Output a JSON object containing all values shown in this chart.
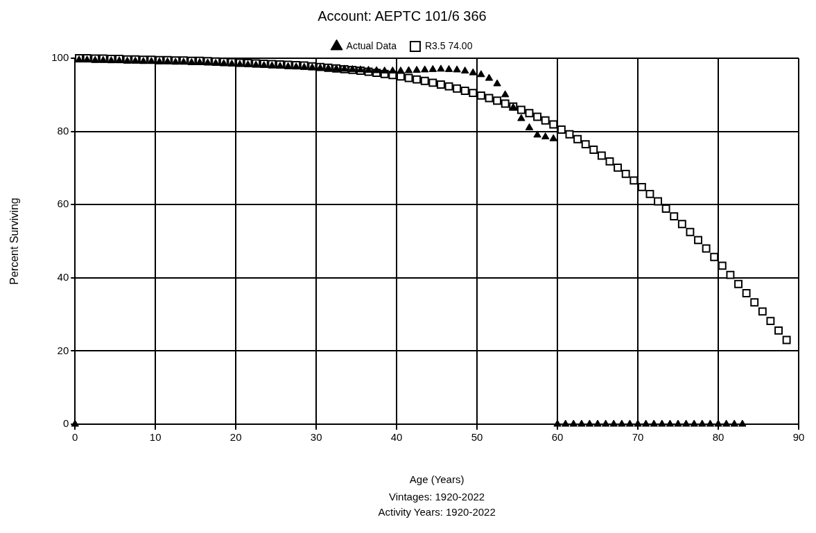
{
  "chart_data": {
    "type": "scatter",
    "title": "Account: AEPTC 101/6 366",
    "xlabel": "Age (Years)",
    "ylabel": "Percent Surviving",
    "annotations": [
      "Vintages: 1920-2022",
      "Activity Years: 1920-2022"
    ],
    "xlim": [
      0,
      90
    ],
    "xticks": [
      0,
      10,
      20,
      30,
      40,
      50,
      60,
      70,
      80,
      90
    ],
    "ylim": [
      0,
      100
    ],
    "yticks": [
      0,
      20,
      40,
      60,
      80,
      100
    ],
    "grid": true,
    "legend": "top",
    "series": [
      {
        "name": "Actual Data",
        "color": "#000000",
        "marker": "triangle",
        "x": [
          0,
          0.5,
          1.5,
          2.5,
          3.5,
          4.5,
          5.5,
          6.5,
          7.5,
          8.5,
          9.5,
          10.5,
          11.5,
          12.5,
          13.5,
          14.5,
          15.5,
          16.5,
          17.5,
          18.5,
          19.5,
          20.5,
          21.5,
          22.5,
          23.5,
          24.5,
          25.5,
          26.5,
          27.5,
          28.5,
          29.5,
          30.5,
          31.5,
          32.5,
          33.5,
          34.5,
          35.5,
          36.5,
          37.5,
          38.5,
          39.5,
          40.5,
          41.5,
          42.5,
          43.5,
          44.5,
          45.5,
          46.5,
          47.5,
          48.5,
          49.5,
          50.5,
          51.5,
          52.5,
          53.5,
          54.5,
          55.5,
          56.5,
          57.5,
          58.5,
          59.5,
          60,
          61,
          62,
          63,
          64,
          65,
          66,
          67,
          68,
          69,
          70,
          71,
          72,
          73,
          74,
          75,
          76,
          77,
          78,
          79,
          80,
          81,
          82,
          83
        ],
        "values": [
          0,
          99.5,
          99.5,
          99.4,
          99.4,
          99.3,
          99.3,
          99.2,
          99.2,
          99.1,
          99.1,
          99,
          99,
          98.9,
          98.9,
          98.8,
          98.8,
          98.7,
          98.6,
          98.5,
          98.4,
          98.3,
          98.2,
          98.1,
          98,
          97.9,
          97.8,
          97.7,
          97.6,
          97.5,
          97.4,
          97.3,
          97.2,
          97.1,
          97,
          96.9,
          96.8,
          96.7,
          96.6,
          96.5,
          96.5,
          96.5,
          96.6,
          96.7,
          96.8,
          96.9,
          97,
          96.9,
          96.8,
          96.5,
          96,
          95.5,
          94.5,
          93,
          90,
          86.5,
          83.5,
          81,
          79,
          78.5,
          78,
          0,
          0,
          0,
          0,
          0,
          0,
          0,
          0,
          0,
          0,
          0,
          0,
          0,
          0,
          0,
          0,
          0,
          0,
          0,
          0,
          0,
          0,
          0,
          0
        ]
      },
      {
        "name": "R3.5 74.00",
        "color": "#000000",
        "marker": "square",
        "x": [
          0.5,
          1.5,
          2.5,
          3.5,
          4.5,
          5.5,
          6.5,
          7.5,
          8.5,
          9.5,
          10.5,
          11.5,
          12.5,
          13.5,
          14.5,
          15.5,
          16.5,
          17.5,
          18.5,
          19.5,
          20.5,
          21.5,
          22.5,
          23.5,
          24.5,
          25.5,
          26.5,
          27.5,
          28.5,
          29.5,
          30.5,
          31.5,
          32.5,
          33.5,
          34.5,
          35.5,
          36.5,
          37.5,
          38.5,
          39.5,
          40.5,
          41.5,
          42.5,
          43.5,
          44.5,
          45.5,
          46.5,
          47.5,
          48.5,
          49.5,
          50.5,
          51.5,
          52.5,
          53.5,
          54.5,
          55.5,
          56.5,
          57.5,
          58.5,
          59.5,
          60.5,
          61.5,
          62.5,
          63.5,
          64.5,
          65.5,
          66.5,
          67.5,
          68.5,
          69.5,
          70.5,
          71.5,
          72.5,
          73.5,
          74.5,
          75.5,
          76.5,
          77.5,
          78.5,
          79.5,
          80.5,
          81.5,
          82.5,
          83.5,
          84.5,
          85.5,
          86.5,
          87.5,
          88.5
        ],
        "values": [
          100,
          100,
          99.9,
          99.9,
          99.8,
          99.8,
          99.7,
          99.7,
          99.6,
          99.6,
          99.5,
          99.5,
          99.4,
          99.4,
          99.3,
          99.3,
          99.2,
          99.1,
          99,
          98.9,
          98.8,
          98.7,
          98.6,
          98.5,
          98.4,
          98.3,
          98.2,
          98.1,
          98,
          97.8,
          97.6,
          97.4,
          97.2,
          97,
          96.8,
          96.6,
          96.3,
          96,
          95.7,
          95.4,
          95,
          94.6,
          94.2,
          93.8,
          93.3,
          92.8,
          92.3,
          91.7,
          91.1,
          90.5,
          89.8,
          89.1,
          88.4,
          87.6,
          86.8,
          85.9,
          85,
          84,
          83,
          81.9,
          80.5,
          79.2,
          77.9,
          76.5,
          75,
          73.4,
          71.8,
          70.1,
          68.4,
          66.6,
          64.8,
          62.9,
          60.9,
          58.9,
          56.8,
          54.7,
          52.5,
          50.3,
          48,
          45.7,
          43.3,
          40.8,
          38.3,
          35.8,
          33.3,
          30.8,
          28.2,
          25.6,
          23
        ]
      }
    ]
  }
}
